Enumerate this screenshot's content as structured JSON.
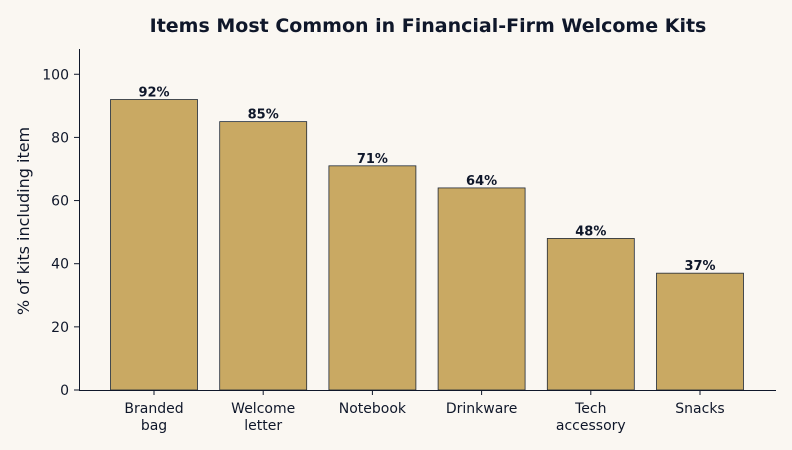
{
  "chart_data": {
    "type": "bar",
    "title": "Items Most Common in Financial-Firm Welcome Kits",
    "xlabel": "",
    "ylabel": "% of kits including item",
    "categories": [
      [
        "Branded",
        "bag"
      ],
      [
        "Welcome",
        "letter"
      ],
      [
        "Notebook"
      ],
      [
        "Drinkware"
      ],
      [
        "Tech",
        "accessory"
      ],
      [
        "Snacks"
      ]
    ],
    "values": [
      92,
      85,
      71,
      64,
      48,
      37
    ],
    "data_labels": [
      "92%",
      "85%",
      "71%",
      "64%",
      "48%",
      "37%"
    ],
    "y_ticks": [
      0,
      20,
      40,
      60,
      80,
      100
    ],
    "ylim": [
      0,
      108
    ],
    "grid": false,
    "colors": {
      "bar": "#c9a963",
      "bar_edge": "#1f2937",
      "axis": "#0f172a",
      "background": "#faf7f2"
    }
  }
}
